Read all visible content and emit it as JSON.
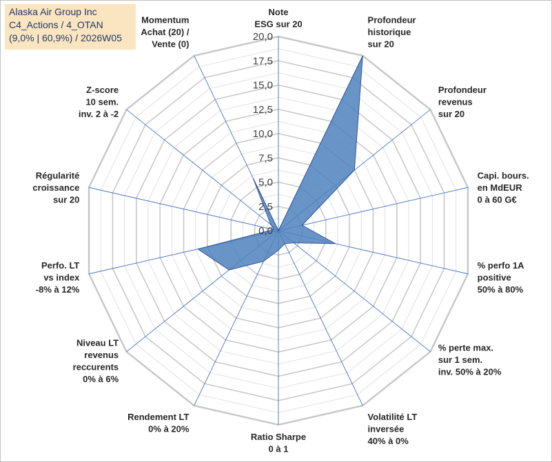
{
  "header": {
    "line1": "Alaska Air Group Inc",
    "line2": "C4_Actions / 4_OTAN",
    "line3": "(9,0% | 60,9%) / 2026W05"
  },
  "chart_data": {
    "type": "radar",
    "title": "Alaska Air Group Inc",
    "rmin": 0,
    "rmax": 20,
    "ticks": [
      "0,0",
      "2,5",
      "5,0",
      "7,5",
      "10,0",
      "12,5",
      "15,0",
      "17,5",
      "20,0"
    ],
    "tick_values": [
      0,
      2.5,
      5,
      7.5,
      10,
      12.5,
      15,
      17.5,
      20
    ],
    "categories": [
      [
        "Note",
        "ESG sur 20"
      ],
      [
        "Profondeur",
        "historique",
        "sur 20"
      ],
      [
        "Profondeur",
        "revenus",
        "sur 20"
      ],
      [
        "Capi. bours.",
        "en MdEUR",
        "0 à 60 G€"
      ],
      [
        "% perfo 1A",
        "positive",
        "50% à 80%"
      ],
      [
        "% perte max.",
        "sur 1 sem.",
        "inv. 50% à 20%"
      ],
      [
        "Volatilité LT",
        "inversée",
        "40% à 0%"
      ],
      [
        "Ratio Sharpe",
        "0 à 1"
      ],
      [
        "Rendement LT",
        "0% à 20%"
      ],
      [
        "Niveau LT",
        "revenus",
        "reccurents",
        "0% à 6%"
      ],
      [
        "Perfo. LT",
        "vs index",
        "-8% à 12%"
      ],
      [
        "Régularité",
        "croissance",
        "sur 20"
      ],
      [
        "Z-score",
        "10 sem.",
        "inv. 2 à -2"
      ],
      [
        "Momentum",
        "Achat (20) /",
        "Vente (0)"
      ]
    ],
    "series": [
      {
        "name": "Alaska Air Group Inc",
        "color": "#4f81bd",
        "values": [
          0,
          20,
          10,
          2.5,
          6,
          2,
          1.5,
          2,
          3.5,
          6.5,
          8.5,
          0.5,
          1,
          6
        ]
      }
    ],
    "grid": true,
    "colors": {
      "grid": "#bfbfbf",
      "axis": "#4472c4",
      "fill": "#4f81bd",
      "stroke": "#2f5597"
    }
  }
}
